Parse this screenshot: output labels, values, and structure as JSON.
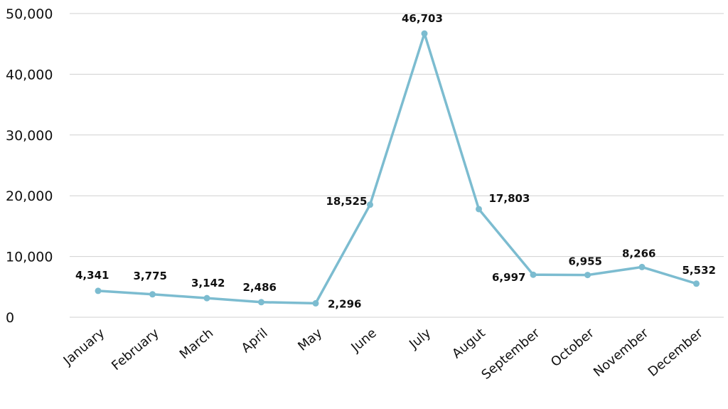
{
  "colors": {
    "line": "#7cbcd0",
    "grid": "#d0d0d0",
    "text": "#111111"
  },
  "chart_data": {
    "type": "line",
    "title": "",
    "xlabel": "",
    "ylabel": "",
    "categories": [
      "January",
      "February",
      "March",
      "April",
      "May",
      "June",
      "July",
      "Augut",
      "September",
      "October",
      "November",
      "December"
    ],
    "values": [
      4341,
      3775,
      3142,
      2486,
      2296,
      18525,
      46703,
      17803,
      6997,
      6955,
      8266,
      5532
    ],
    "data_labels": [
      "4,341",
      "3,775",
      "3,142",
      "2,486",
      "2,296",
      "18,525",
      "46,703",
      "17,803",
      "6,997",
      "6,955",
      "8,266",
      "5,532"
    ],
    "yticks": [
      0,
      10000,
      20000,
      30000,
      40000,
      50000
    ],
    "ytick_labels": [
      "0",
      "10,000",
      "20,000",
      "30,000",
      "40,000",
      "50,000"
    ],
    "ylim": [
      0,
      50000
    ],
    "grid": true,
    "legend": "none",
    "markers": true
  }
}
